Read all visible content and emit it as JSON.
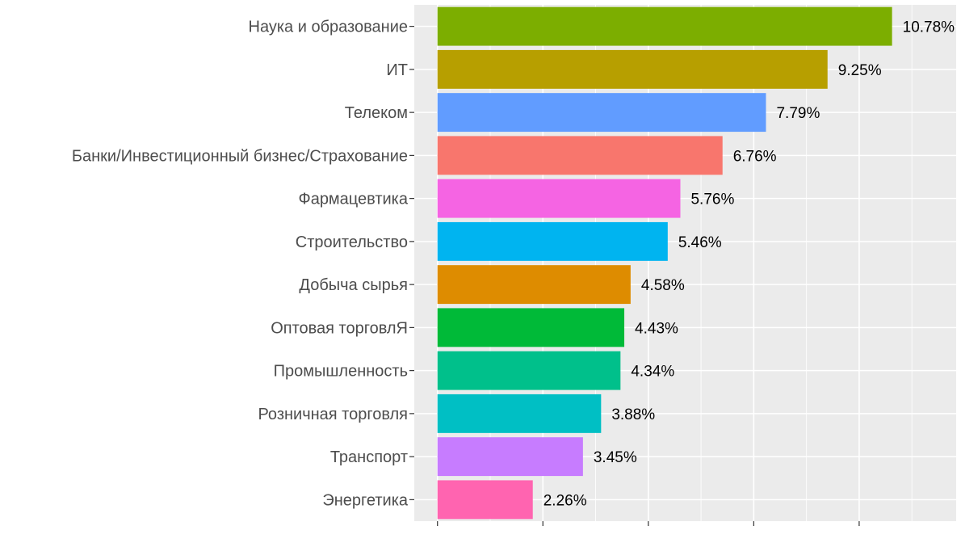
{
  "chart_data": {
    "type": "bar",
    "orientation": "horizontal",
    "title": "",
    "xlabel": "",
    "ylabel": "",
    "xlim": [
      -0.55,
      12.3
    ],
    "grid": true,
    "legend": "none",
    "categories": [
      "Наука и образование",
      "ИТ",
      "Телеком",
      "Банки/Инвестиционный бизнес/Страхование",
      "Фармацевтика",
      "Строительство",
      "Добыча сырья",
      "Оптовая торговлЯ",
      "Промышленность",
      "Розничная торговля",
      "Транспорт",
      "Энергетика"
    ],
    "values": [
      10.78,
      9.25,
      7.79,
      6.76,
      5.76,
      5.46,
      4.58,
      4.43,
      4.34,
      3.88,
      3.45,
      2.26
    ],
    "value_labels": [
      "10.78%",
      "9.25%",
      "7.79%",
      "6.76%",
      "5.76%",
      "5.46%",
      "4.58%",
      "4.43%",
      "4.34%",
      "3.88%",
      "3.45%",
      "2.26%"
    ],
    "colors": [
      "#7CAE00",
      "#B79F00",
      "#619CFF",
      "#F8766D",
      "#F564E3",
      "#00B4F0",
      "#DE8C00",
      "#00BA38",
      "#00C08B",
      "#00BFC4",
      "#C77CFF",
      "#FF64B0"
    ],
    "panel_background": "#EBEBEB",
    "grid_color": "#FFFFFF"
  }
}
